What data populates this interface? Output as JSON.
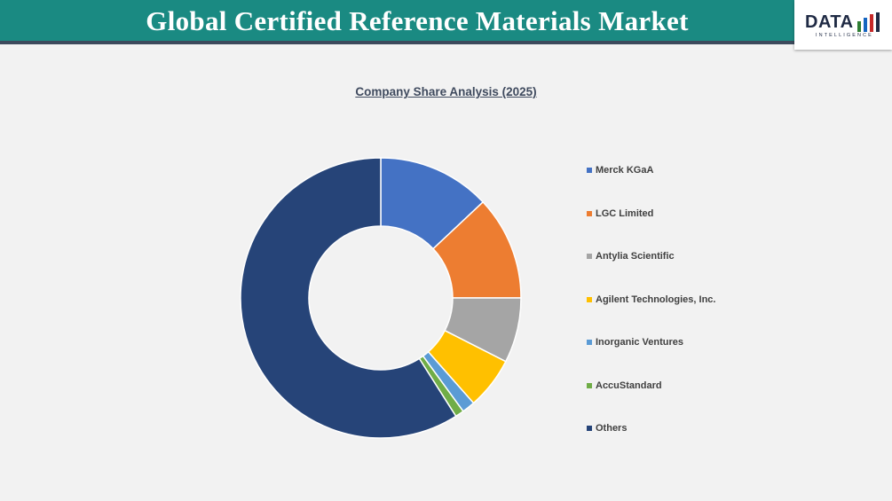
{
  "header": {
    "title": "Global Certified Reference Materials Market"
  },
  "logo": {
    "word": "DATA",
    "subtitle": "INTELLIGENCE",
    "bar_colors": [
      "#2e7d32",
      "#1565c0",
      "#c62828",
      "#1f2a44"
    ]
  },
  "chart_data": {
    "type": "pie",
    "variant": "donut",
    "title": "Company Share Analysis (2025)",
    "legend_position": "right",
    "series": [
      {
        "name": "Merck KGaA",
        "value": 13,
        "color": "#4472c4"
      },
      {
        "name": "LGC Limited",
        "value": 12,
        "color": "#ed7d31"
      },
      {
        "name": "Antylia Scientific",
        "value": 7.5,
        "color": "#a5a5a5"
      },
      {
        "name": "Agilent Technologies, Inc.",
        "value": 6,
        "color": "#ffc000"
      },
      {
        "name": "Inorganic Ventures",
        "value": 1.5,
        "color": "#5b9bd5"
      },
      {
        "name": "AccuStandard",
        "value": 1,
        "color": "#70ad47"
      },
      {
        "name": "Others",
        "value": 59,
        "color": "#264478"
      }
    ]
  }
}
